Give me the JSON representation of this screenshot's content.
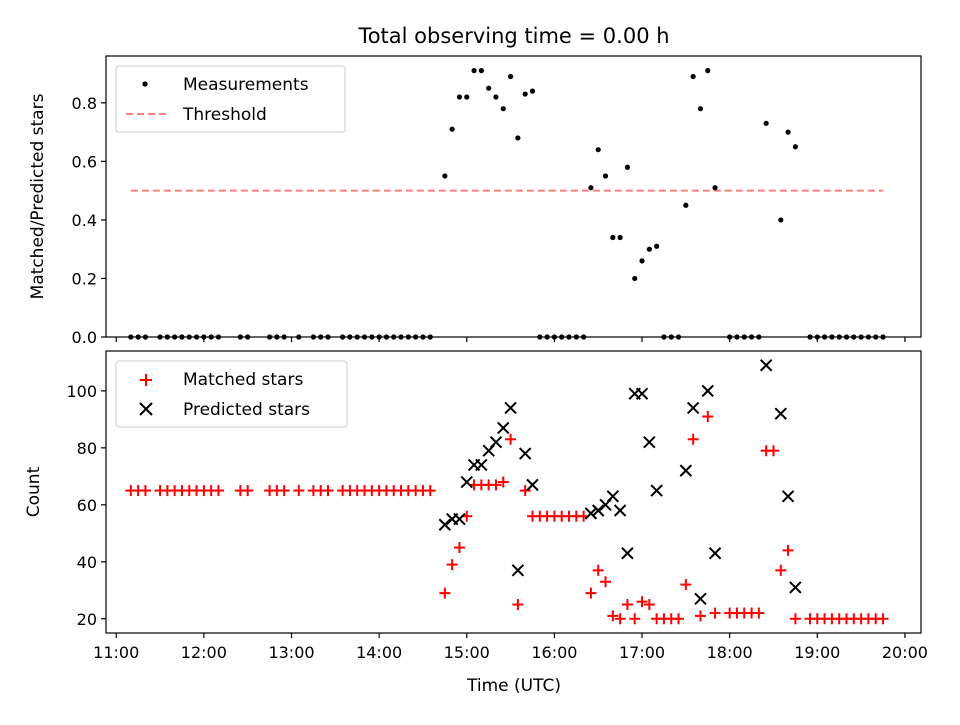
{
  "chart_data": [
    {
      "type": "scatter",
      "title": "Total observing time = 0.00 h",
      "xlabel": "",
      "ylabel": "Matched/Predicted stars",
      "xlim": [
        "10:53",
        "20:11"
      ],
      "ylim": [
        0.0,
        0.96
      ],
      "x_tick_labels": [
        "11:00",
        "12:00",
        "13:00",
        "14:00",
        "15:00",
        "16:00",
        "17:00",
        "18:00",
        "19:00",
        "20:00"
      ],
      "x_tick_labels_visible": false,
      "y_ticks": [
        0.0,
        0.2,
        0.4,
        0.6,
        0.8
      ],
      "y_tick_labels": [
        "0.0",
        "0.2",
        "0.4",
        "0.6",
        "0.8"
      ],
      "grid": false,
      "legend_position": "upper-left",
      "series": [
        {
          "name": "Measurements",
          "marker": "dot",
          "color": "#000000",
          "points": [
            [
              "11:10",
              0
            ],
            [
              "11:15",
              0
            ],
            [
              "11:20",
              0
            ],
            [
              "11:30",
              0
            ],
            [
              "11:35",
              0
            ],
            [
              "11:40",
              0
            ],
            [
              "11:45",
              0
            ],
            [
              "11:50",
              0
            ],
            [
              "11:55",
              0
            ],
            [
              "12:00",
              0
            ],
            [
              "12:05",
              0
            ],
            [
              "12:10",
              0
            ],
            [
              "12:25",
              0
            ],
            [
              "12:30",
              0
            ],
            [
              "12:45",
              0
            ],
            [
              "12:50",
              0
            ],
            [
              "12:55",
              0
            ],
            [
              "13:05",
              0
            ],
            [
              "13:15",
              0
            ],
            [
              "13:20",
              0
            ],
            [
              "13:25",
              0
            ],
            [
              "13:35",
              0
            ],
            [
              "13:40",
              0
            ],
            [
              "13:45",
              0
            ],
            [
              "13:50",
              0
            ],
            [
              "13:55",
              0
            ],
            [
              "14:00",
              0
            ],
            [
              "14:05",
              0
            ],
            [
              "14:10",
              0
            ],
            [
              "14:15",
              0
            ],
            [
              "14:20",
              0
            ],
            [
              "14:25",
              0
            ],
            [
              "14:30",
              0
            ],
            [
              "14:35",
              0
            ],
            [
              "14:45",
              0.55
            ],
            [
              "14:50",
              0.71
            ],
            [
              "14:55",
              0.82
            ],
            [
              "15:00",
              0.82
            ],
            [
              "15:05",
              0.91
            ],
            [
              "15:10",
              0.91
            ],
            [
              "15:15",
              0.85
            ],
            [
              "15:20",
              0.82
            ],
            [
              "15:25",
              0.78
            ],
            [
              "15:30",
              0.89
            ],
            [
              "15:35",
              0.68
            ],
            [
              "15:40",
              0.83
            ],
            [
              "15:45",
              0.84
            ],
            [
              "15:50",
              0
            ],
            [
              "15:55",
              0
            ],
            [
              "16:00",
              0
            ],
            [
              "16:05",
              0
            ],
            [
              "16:10",
              0
            ],
            [
              "16:15",
              0
            ],
            [
              "16:20",
              0
            ],
            [
              "16:25",
              0.51
            ],
            [
              "16:30",
              0.64
            ],
            [
              "16:35",
              0.55
            ],
            [
              "16:40",
              0.34
            ],
            [
              "16:45",
              0.34
            ],
            [
              "16:50",
              0.58
            ],
            [
              "16:55",
              0.2
            ],
            [
              "17:00",
              0.26
            ],
            [
              "17:05",
              0.3
            ],
            [
              "17:10",
              0.31
            ],
            [
              "17:15",
              0
            ],
            [
              "17:20",
              0
            ],
            [
              "17:25",
              0
            ],
            [
              "17:30",
              0.45
            ],
            [
              "17:35",
              0.89
            ],
            [
              "17:40",
              0.78
            ],
            [
              "17:45",
              0.91
            ],
            [
              "17:50",
              0.51
            ],
            [
              "18:00",
              0
            ],
            [
              "18:05",
              0
            ],
            [
              "18:10",
              0
            ],
            [
              "18:15",
              0
            ],
            [
              "18:20",
              0
            ],
            [
              "18:25",
              0.73
            ],
            [
              "18:35",
              0.4
            ],
            [
              "18:40",
              0.7
            ],
            [
              "18:45",
              0.65
            ],
            [
              "18:55",
              0
            ],
            [
              "19:00",
              0
            ],
            [
              "19:05",
              0
            ],
            [
              "19:10",
              0
            ],
            [
              "19:15",
              0
            ],
            [
              "19:20",
              0
            ],
            [
              "19:25",
              0
            ],
            [
              "19:30",
              0
            ],
            [
              "19:35",
              0
            ],
            [
              "19:40",
              0
            ],
            [
              "19:45",
              0
            ]
          ]
        },
        {
          "name": "Threshold",
          "type": "line",
          "style": "dashed",
          "color": "#ff7f7f",
          "points": [
            [
              "11:10",
              0.5
            ],
            [
              "19:45",
              0.5
            ]
          ]
        }
      ]
    },
    {
      "type": "scatter",
      "title": "",
      "xlabel": "Time (UTC)",
      "ylabel": "Count",
      "xlim": [
        "10:53",
        "20:11"
      ],
      "ylim": [
        15,
        114
      ],
      "x_tick_labels": [
        "11:00",
        "12:00",
        "13:00",
        "14:00",
        "15:00",
        "16:00",
        "17:00",
        "18:00",
        "19:00",
        "20:00"
      ],
      "y_ticks": [
        20,
        40,
        60,
        80,
        100
      ],
      "y_tick_labels": [
        "20",
        "40",
        "60",
        "80",
        "100"
      ],
      "grid": false,
      "legend_position": "upper-left",
      "series": [
        {
          "name": "Matched stars",
          "marker": "plus",
          "color": "#ff0000",
          "points": [
            [
              "11:10",
              65
            ],
            [
              "11:15",
              65
            ],
            [
              "11:20",
              65
            ],
            [
              "11:30",
              65
            ],
            [
              "11:35",
              65
            ],
            [
              "11:40",
              65
            ],
            [
              "11:45",
              65
            ],
            [
              "11:50",
              65
            ],
            [
              "11:55",
              65
            ],
            [
              "12:00",
              65
            ],
            [
              "12:05",
              65
            ],
            [
              "12:10",
              65
            ],
            [
              "12:25",
              65
            ],
            [
              "12:30",
              65
            ],
            [
              "12:45",
              65
            ],
            [
              "12:50",
              65
            ],
            [
              "12:55",
              65
            ],
            [
              "13:05",
              65
            ],
            [
              "13:15",
              65
            ],
            [
              "13:20",
              65
            ],
            [
              "13:25",
              65
            ],
            [
              "13:35",
              65
            ],
            [
              "13:40",
              65
            ],
            [
              "13:45",
              65
            ],
            [
              "13:50",
              65
            ],
            [
              "13:55",
              65
            ],
            [
              "14:00",
              65
            ],
            [
              "14:05",
              65
            ],
            [
              "14:10",
              65
            ],
            [
              "14:15",
              65
            ],
            [
              "14:20",
              65
            ],
            [
              "14:25",
              65
            ],
            [
              "14:30",
              65
            ],
            [
              "14:35",
              65
            ],
            [
              "14:45",
              29
            ],
            [
              "14:50",
              39
            ],
            [
              "14:55",
              45
            ],
            [
              "15:00",
              56
            ],
            [
              "15:05",
              67
            ],
            [
              "15:10",
              67
            ],
            [
              "15:15",
              67
            ],
            [
              "15:20",
              67
            ],
            [
              "15:25",
              68
            ],
            [
              "15:30",
              83
            ],
            [
              "15:35",
              25
            ],
            [
              "15:40",
              65
            ],
            [
              "15:45",
              56
            ],
            [
              "15:50",
              56
            ],
            [
              "15:55",
              56
            ],
            [
              "16:00",
              56
            ],
            [
              "16:05",
              56
            ],
            [
              "16:10",
              56
            ],
            [
              "16:15",
              56
            ],
            [
              "16:20",
              56
            ],
            [
              "16:25",
              29
            ],
            [
              "16:30",
              37
            ],
            [
              "16:35",
              33
            ],
            [
              "16:40",
              21
            ],
            [
              "16:45",
              20
            ],
            [
              "16:50",
              25
            ],
            [
              "16:55",
              20
            ],
            [
              "17:00",
              26
            ],
            [
              "17:05",
              25
            ],
            [
              "17:10",
              20
            ],
            [
              "17:15",
              20
            ],
            [
              "17:20",
              20
            ],
            [
              "17:25",
              20
            ],
            [
              "17:30",
              32
            ],
            [
              "17:35",
              83
            ],
            [
              "17:40",
              21
            ],
            [
              "17:45",
              91
            ],
            [
              "17:50",
              22
            ],
            [
              "18:00",
              22
            ],
            [
              "18:05",
              22
            ],
            [
              "18:10",
              22
            ],
            [
              "18:15",
              22
            ],
            [
              "18:20",
              22
            ],
            [
              "18:25",
              79
            ],
            [
              "18:30",
              79
            ],
            [
              "18:35",
              37
            ],
            [
              "18:40",
              44
            ],
            [
              "18:45",
              20
            ],
            [
              "18:55",
              20
            ],
            [
              "19:00",
              20
            ],
            [
              "19:05",
              20
            ],
            [
              "19:10",
              20
            ],
            [
              "19:15",
              20
            ],
            [
              "19:20",
              20
            ],
            [
              "19:25",
              20
            ],
            [
              "19:30",
              20
            ],
            [
              "19:35",
              20
            ],
            [
              "19:40",
              20
            ],
            [
              "19:45",
              20
            ]
          ]
        },
        {
          "name": "Predicted stars",
          "marker": "x",
          "color": "#000000",
          "points": [
            [
              "14:45",
              53
            ],
            [
              "14:50",
              55
            ],
            [
              "14:55",
              55
            ],
            [
              "15:00",
              68
            ],
            [
              "15:05",
              74
            ],
            [
              "15:10",
              74
            ],
            [
              "15:15",
              79
            ],
            [
              "15:20",
              82
            ],
            [
              "15:25",
              87
            ],
            [
              "15:30",
              94
            ],
            [
              "15:35",
              37
            ],
            [
              "15:40",
              78
            ],
            [
              "15:45",
              67
            ],
            [
              "16:25",
              57
            ],
            [
              "16:30",
              58
            ],
            [
              "16:35",
              60
            ],
            [
              "16:40",
              63
            ],
            [
              "16:45",
              58
            ],
            [
              "16:50",
              43
            ],
            [
              "16:55",
              99
            ],
            [
              "17:00",
              99
            ],
            [
              "17:05",
              82
            ],
            [
              "17:10",
              65
            ],
            [
              "17:30",
              72
            ],
            [
              "17:35",
              94
            ],
            [
              "17:40",
              27
            ],
            [
              "17:45",
              100
            ],
            [
              "17:50",
              43
            ],
            [
              "18:25",
              109
            ],
            [
              "18:35",
              92
            ],
            [
              "18:40",
              63
            ],
            [
              "18:45",
              31
            ]
          ]
        }
      ]
    }
  ],
  "colors": {
    "matched": "#ff0000",
    "predicted": "#000000",
    "threshold": "#ff7f7f",
    "measurements": "#000000"
  }
}
